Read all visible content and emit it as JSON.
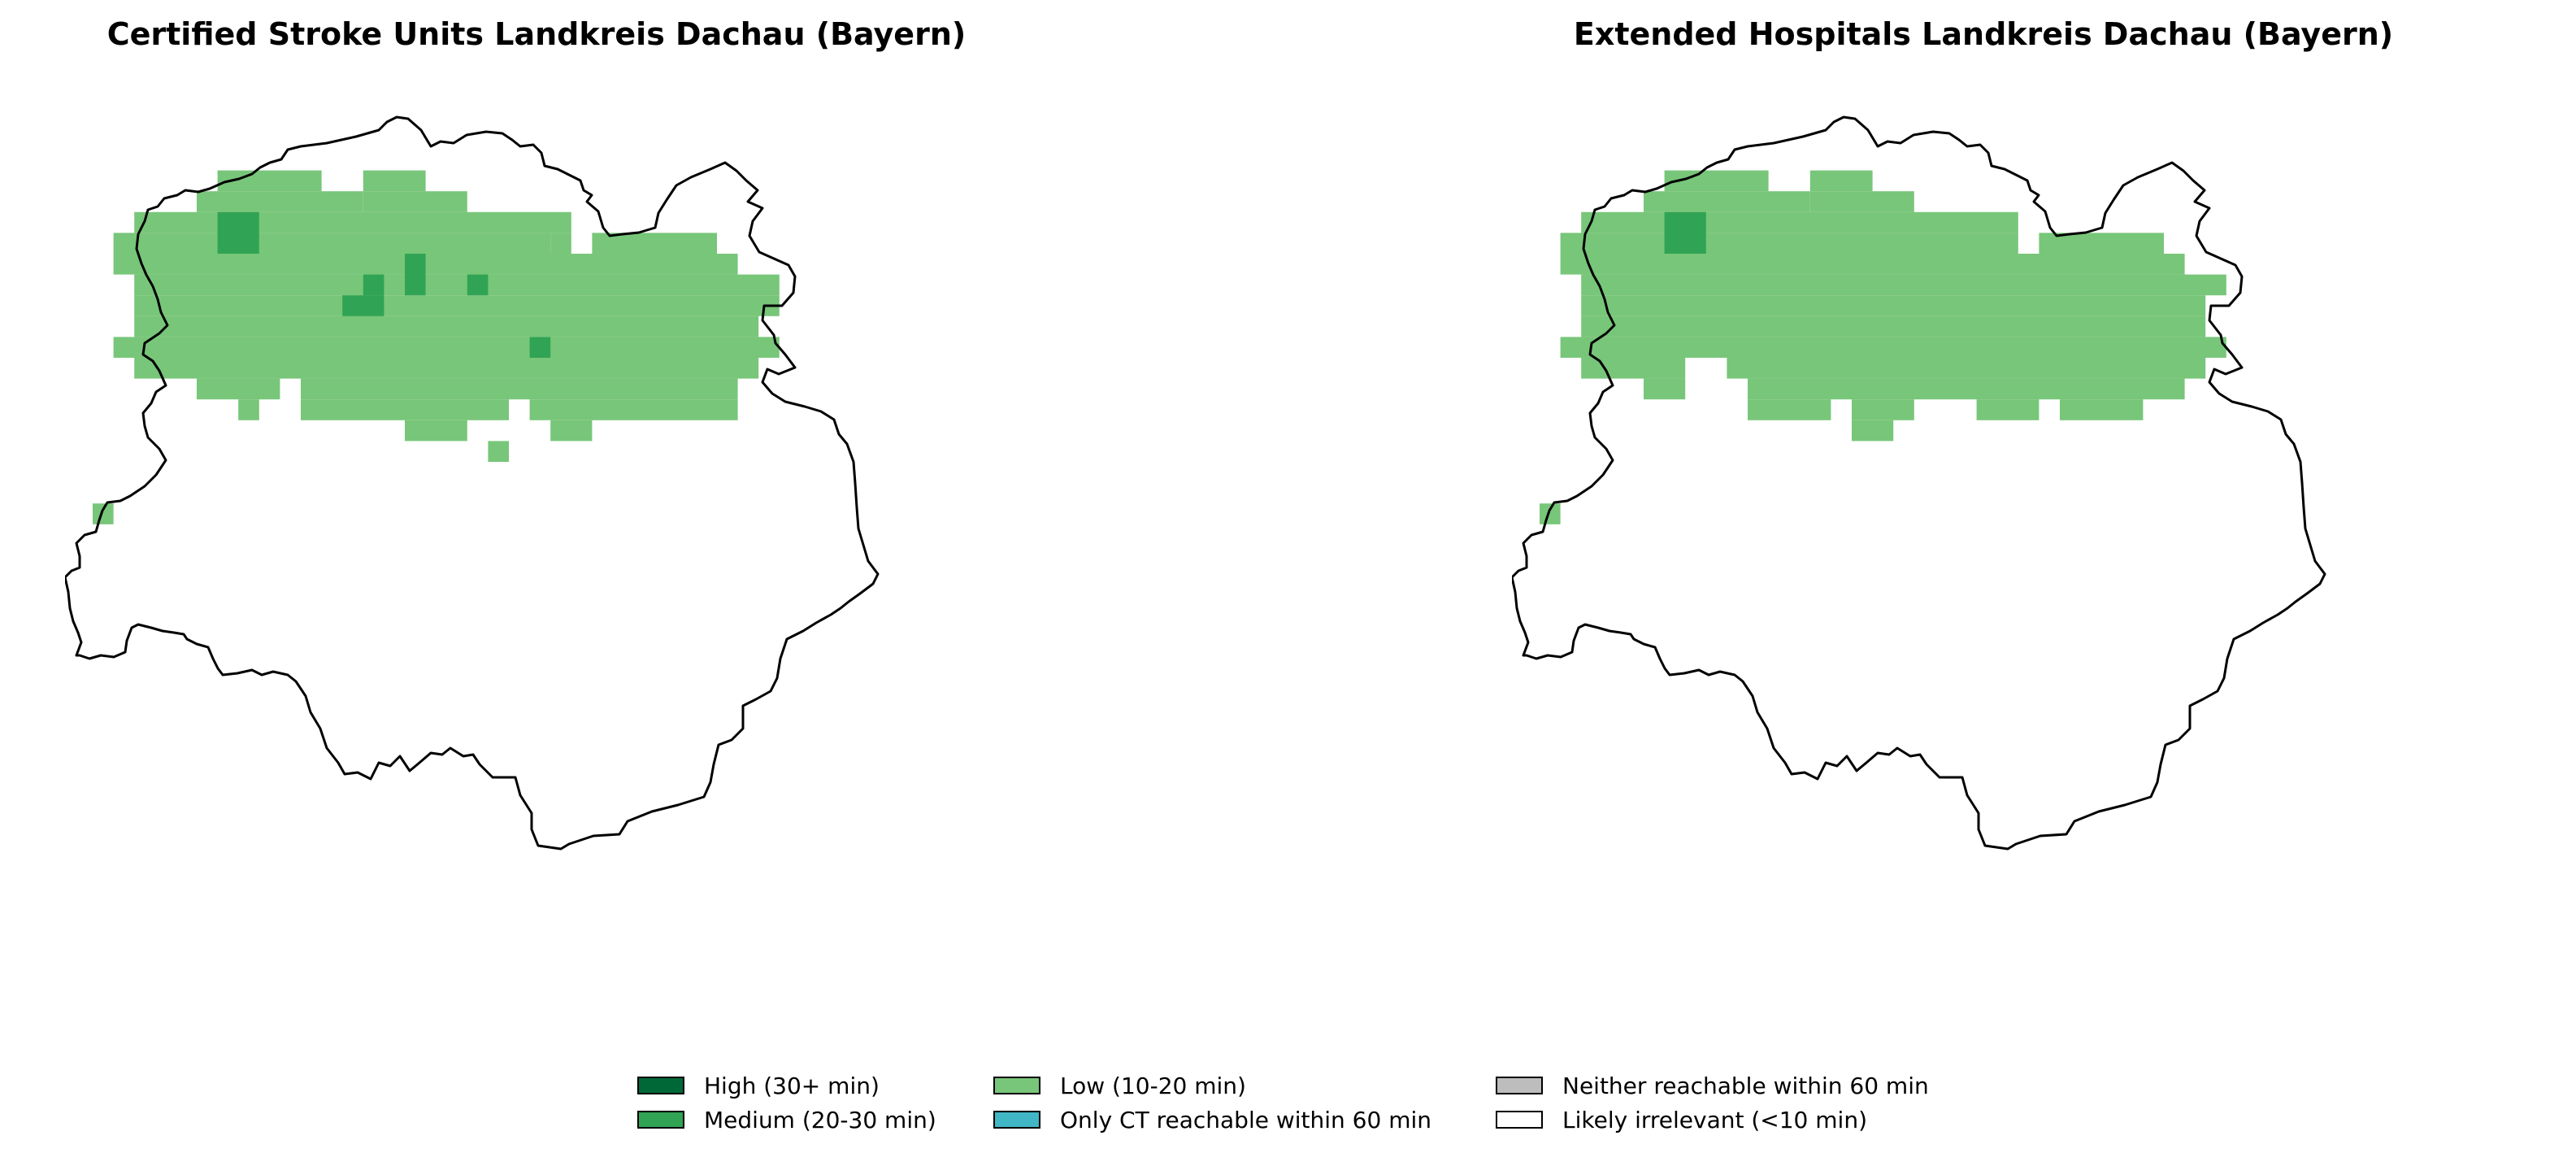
{
  "maps": [
    {
      "title": "Certified Stroke Units Landkreis Dachau (Bayern)",
      "cells": [
        {
          "c": 6,
          "r": 1,
          "w": 5,
          "h": 1,
          "level": "low"
        },
        {
          "c": 13,
          "r": 1,
          "w": 3,
          "h": 1,
          "level": "low"
        },
        {
          "c": 5,
          "r": 2,
          "w": 8,
          "h": 1,
          "level": "low"
        },
        {
          "c": 13,
          "r": 2,
          "w": 5,
          "h": 1,
          "level": "low"
        },
        {
          "c": 2,
          "r": 3,
          "w": 21,
          "h": 1,
          "level": "low"
        },
        {
          "c": 1,
          "r": 4,
          "w": 21,
          "h": 1,
          "level": "low"
        },
        {
          "c": 22,
          "r": 4,
          "w": 1,
          "h": 1,
          "level": "low"
        },
        {
          "c": 24,
          "r": 4,
          "w": 6,
          "h": 1,
          "level": "low"
        },
        {
          "c": 1,
          "r": 5,
          "w": 30,
          "h": 1,
          "level": "low"
        },
        {
          "c": 2,
          "r": 6,
          "w": 31,
          "h": 1,
          "level": "low"
        },
        {
          "c": 2,
          "r": 7,
          "w": 31,
          "h": 1,
          "level": "low"
        },
        {
          "c": 2,
          "r": 8,
          "w": 30,
          "h": 1,
          "level": "low"
        },
        {
          "c": 1,
          "r": 9,
          "w": 32,
          "h": 1,
          "level": "low"
        },
        {
          "c": 2,
          "r": 10,
          "w": 30,
          "h": 1,
          "level": "low"
        },
        {
          "c": 5,
          "r": 11,
          "w": 4,
          "h": 1,
          "level": "low"
        },
        {
          "c": 10,
          "r": 11,
          "w": 21,
          "h": 1,
          "level": "low"
        },
        {
          "c": 7,
          "r": 12,
          "w": 1,
          "h": 1,
          "level": "low"
        },
        {
          "c": 10,
          "r": 12,
          "w": 10,
          "h": 1,
          "level": "low"
        },
        {
          "c": 21,
          "r": 12,
          "w": 10,
          "h": 1,
          "level": "low"
        },
        {
          "c": 15,
          "r": 13,
          "w": 3,
          "h": 1,
          "level": "low"
        },
        {
          "c": 22,
          "r": 13,
          "w": 2,
          "h": 1,
          "level": "low"
        },
        {
          "c": 19,
          "r": 14,
          "w": 1,
          "h": 1,
          "level": "low"
        },
        {
          "c": 0,
          "r": 17,
          "w": 1,
          "h": 1,
          "level": "low"
        },
        {
          "c": 6,
          "r": 3,
          "w": 2,
          "h": 2,
          "level": "medium"
        },
        {
          "c": 15,
          "r": 5,
          "w": 1,
          "h": 2,
          "level": "medium"
        },
        {
          "c": 18,
          "r": 6,
          "w": 1,
          "h": 1,
          "level": "medium"
        },
        {
          "c": 13,
          "r": 6,
          "w": 1,
          "h": 1,
          "level": "medium"
        },
        {
          "c": 12,
          "r": 7,
          "w": 2,
          "h": 1,
          "level": "medium"
        },
        {
          "c": 21,
          "r": 9,
          "w": 1,
          "h": 1,
          "level": "medium"
        }
      ]
    },
    {
      "title": "Extended Hospitals Landkreis Dachau (Bayern)",
      "cells": [
        {
          "c": 6,
          "r": 1,
          "w": 5,
          "h": 1,
          "level": "low"
        },
        {
          "c": 13,
          "r": 1,
          "w": 3,
          "h": 1,
          "level": "low"
        },
        {
          "c": 5,
          "r": 2,
          "w": 8,
          "h": 1,
          "level": "low"
        },
        {
          "c": 13,
          "r": 2,
          "w": 5,
          "h": 1,
          "level": "low"
        },
        {
          "c": 2,
          "r": 3,
          "w": 21,
          "h": 1,
          "level": "low"
        },
        {
          "c": 1,
          "r": 4,
          "w": 22,
          "h": 1,
          "level": "low"
        },
        {
          "c": 24,
          "r": 4,
          "w": 6,
          "h": 1,
          "level": "low"
        },
        {
          "c": 1,
          "r": 5,
          "w": 30,
          "h": 1,
          "level": "low"
        },
        {
          "c": 2,
          "r": 6,
          "w": 31,
          "h": 1,
          "level": "low"
        },
        {
          "c": 2,
          "r": 7,
          "w": 30,
          "h": 1,
          "level": "low"
        },
        {
          "c": 2,
          "r": 8,
          "w": 30,
          "h": 1,
          "level": "low"
        },
        {
          "c": 1,
          "r": 9,
          "w": 32,
          "h": 1,
          "level": "low"
        },
        {
          "c": 2,
          "r": 10,
          "w": 5,
          "h": 1,
          "level": "low"
        },
        {
          "c": 9,
          "r": 10,
          "w": 23,
          "h": 1,
          "level": "low"
        },
        {
          "c": 5,
          "r": 11,
          "w": 2,
          "h": 1,
          "level": "low"
        },
        {
          "c": 10,
          "r": 11,
          "w": 21,
          "h": 1,
          "level": "low"
        },
        {
          "c": 10,
          "r": 12,
          "w": 4,
          "h": 1,
          "level": "low"
        },
        {
          "c": 15,
          "r": 12,
          "w": 3,
          "h": 1,
          "level": "low"
        },
        {
          "c": 21,
          "r": 12,
          "w": 3,
          "h": 1,
          "level": "low"
        },
        {
          "c": 25,
          "r": 12,
          "w": 4,
          "h": 1,
          "level": "low"
        },
        {
          "c": 15,
          "r": 13,
          "w": 2,
          "h": 1,
          "level": "low"
        },
        {
          "c": 0,
          "r": 17,
          "w": 1,
          "h": 1,
          "level": "low"
        },
        {
          "c": 6,
          "r": 3,
          "w": 2,
          "h": 2,
          "level": "medium"
        }
      ]
    }
  ],
  "legend": [
    {
      "key": "high",
      "label": "High (30+ min)",
      "color": "#006837"
    },
    {
      "key": "medium",
      "label": "Medium (20-30 min)",
      "color": "#31a354"
    },
    {
      "key": "low",
      "label": "Low (10-20 min)",
      "color": "#78c679"
    },
    {
      "key": "ct_only",
      "label": "Only CT reachable within 60 min",
      "color": "#41b6c4"
    },
    {
      "key": "neither",
      "label": "Neither reachable within 60 min",
      "color": "#bdbdbd"
    },
    {
      "key": "irrelevant",
      "label": "Likely irrelevant (<10 min)",
      "color": "#ffffff"
    }
  ]
}
